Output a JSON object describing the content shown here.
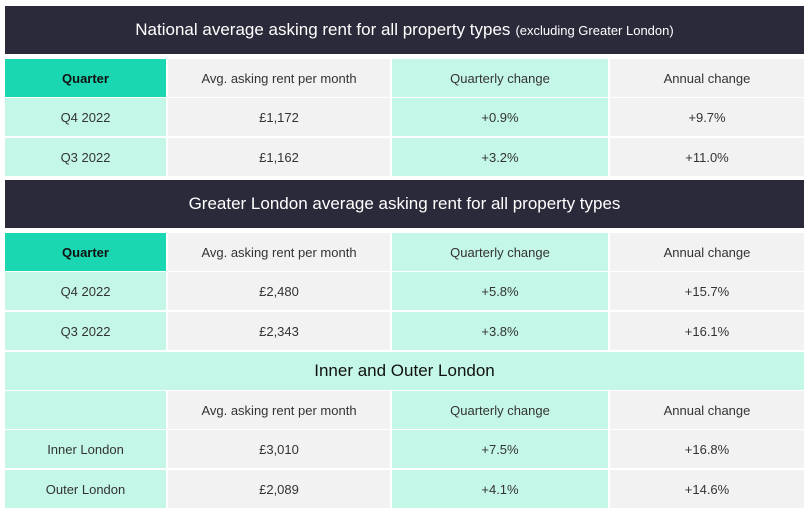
{
  "section1": {
    "title_main": "National average asking rent for all property types",
    "title_note": "(excluding Greater London)",
    "headers": [
      "Quarter",
      "Avg. asking rent per month",
      "Quarterly change",
      "Annual change"
    ],
    "rows": [
      [
        "Q4 2022",
        "£1,172",
        "+0.9%",
        "+9.7%"
      ],
      [
        "Q3 2022",
        "£1,162",
        "+3.2%",
        "+11.0%"
      ]
    ]
  },
  "section2": {
    "title": "Greater London average asking rent for all property types",
    "headers": [
      "Quarter",
      "Avg. asking rent per month",
      "Quarterly change",
      "Annual change"
    ],
    "rows": [
      [
        "Q4 2022",
        "£2,480",
        "+5.8%",
        "+15.7%"
      ],
      [
        "Q3 2022",
        "£2,343",
        "+3.8%",
        "+16.1%"
      ]
    ]
  },
  "section3": {
    "title": "Inner and Outer London",
    "headers": [
      "",
      "Avg. asking rent per month",
      "Quarterly change",
      "Annual change"
    ],
    "rows": [
      [
        "Inner London",
        "£3,010",
        "+7.5%",
        "+16.8%"
      ],
      [
        "Outer London",
        "£2,089",
        "+4.1%",
        "+14.6%"
      ]
    ]
  },
  "colors": {
    "dark_header": "#2b2a3a",
    "teal_header": "#1ad6b1",
    "mint": "#c4f7e7",
    "gray": "#f2f2f2"
  }
}
